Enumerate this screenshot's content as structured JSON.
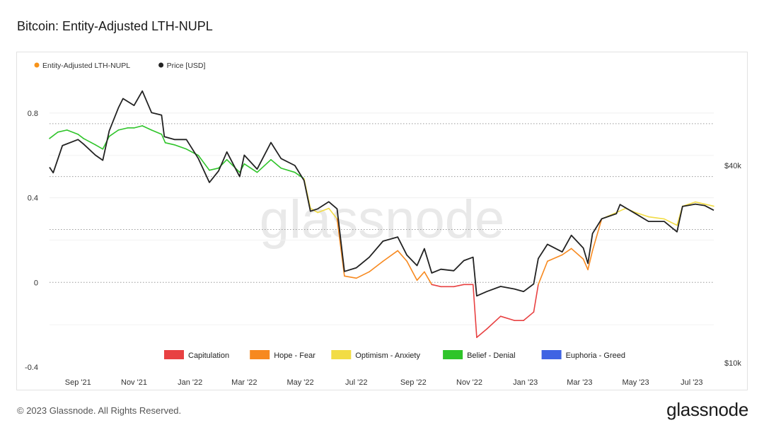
{
  "page": {
    "title": "Bitcoin: Entity-Adjusted LTH-NUPL",
    "copyright": "© 2023 Glassnode. All Rights Reserved.",
    "logo_text": "glassnode",
    "watermark": "glassnode"
  },
  "legend_top": [
    {
      "label": "Entity-Adjusted LTH-NUPL",
      "color": "#f7931a"
    },
    {
      "label": "Price [USD]",
      "color": "#222222"
    }
  ],
  "legend_bottom": [
    {
      "label": "Capitulation",
      "color": "#e84142"
    },
    {
      "label": "Hope - Fear",
      "color": "#f7891f"
    },
    {
      "label": "Optimism - Anxiety",
      "color": "#f2dc45"
    },
    {
      "label": "Belief - Denial",
      "color": "#2fc42a"
    },
    {
      "label": "Euphoria - Greed",
      "color": "#3f63e3"
    }
  ],
  "chart_data": {
    "type": "line",
    "title": "Bitcoin: Entity-Adjusted LTH-NUPL",
    "x_ticks": [
      "Sep '21",
      "Nov '21",
      "Jan '22",
      "Mar '22",
      "May '22",
      "Jul '22",
      "Sep '22",
      "Nov '22",
      "Jan '23",
      "Mar '23",
      "May '23",
      "Jul '23"
    ],
    "x_tick_dates": [
      "2021-09-01",
      "2021-11-01",
      "2022-01-01",
      "2022-03-01",
      "2022-05-01",
      "2022-07-01",
      "2022-09-01",
      "2022-11-01",
      "2023-01-01",
      "2023-03-01",
      "2023-05-01",
      "2023-07-01"
    ],
    "x_range": [
      "2021-08-01",
      "2023-07-25"
    ],
    "y_left": {
      "ticks": [
        "0.8",
        "0.4",
        "0",
        "-0.4"
      ],
      "tick_values": [
        0.8,
        0.4,
        0,
        -0.4
      ],
      "range": [
        -0.4,
        0.92
      ]
    },
    "y_right": {
      "ticks": [
        "$40k",
        "$10k"
      ],
      "tick_values": [
        40000,
        10000
      ],
      "scale": "log"
    },
    "dotted_reference_lines": [
      0.75,
      0.5,
      0.25,
      0
    ],
    "series": [
      {
        "name": "Entity-Adjusted LTH-NUPL",
        "axis": "left",
        "colored_by_zone": true,
        "points": [
          [
            "2021-08-01",
            0.68
          ],
          [
            "2021-08-10",
            0.71
          ],
          [
            "2021-08-20",
            0.72
          ],
          [
            "2021-09-01",
            0.7
          ],
          [
            "2021-09-07",
            0.68
          ],
          [
            "2021-09-20",
            0.65
          ],
          [
            "2021-09-28",
            0.63
          ],
          [
            "2021-10-05",
            0.69
          ],
          [
            "2021-10-15",
            0.72
          ],
          [
            "2021-10-25",
            0.73
          ],
          [
            "2021-11-01",
            0.73
          ],
          [
            "2021-11-10",
            0.74
          ],
          [
            "2021-11-20",
            0.72
          ],
          [
            "2021-12-01",
            0.7
          ],
          [
            "2021-12-05",
            0.66
          ],
          [
            "2021-12-15",
            0.65
          ],
          [
            "2021-12-28",
            0.63
          ],
          [
            "2022-01-10",
            0.6
          ],
          [
            "2022-01-22",
            0.53
          ],
          [
            "2022-02-01",
            0.54
          ],
          [
            "2022-02-10",
            0.58
          ],
          [
            "2022-02-24",
            0.52
          ],
          [
            "2022-03-01",
            0.56
          ],
          [
            "2022-03-15",
            0.52
          ],
          [
            "2022-03-30",
            0.58
          ],
          [
            "2022-04-10",
            0.54
          ],
          [
            "2022-04-25",
            0.52
          ],
          [
            "2022-05-05",
            0.49
          ],
          [
            "2022-05-12",
            0.35
          ],
          [
            "2022-05-20",
            0.33
          ],
          [
            "2022-06-01",
            0.35
          ],
          [
            "2022-06-10",
            0.3
          ],
          [
            "2022-06-18",
            0.03
          ],
          [
            "2022-07-01",
            0.02
          ],
          [
            "2022-07-15",
            0.05
          ],
          [
            "2022-07-30",
            0.1
          ],
          [
            "2022-08-15",
            0.15
          ],
          [
            "2022-08-25",
            0.1
          ],
          [
            "2022-09-05",
            0.01
          ],
          [
            "2022-09-13",
            0.05
          ],
          [
            "2022-09-21",
            -0.01
          ],
          [
            "2022-10-01",
            -0.02
          ],
          [
            "2022-10-15",
            -0.02
          ],
          [
            "2022-10-26",
            -0.01
          ],
          [
            "2022-11-05",
            -0.01
          ],
          [
            "2022-11-09",
            -0.26
          ],
          [
            "2022-11-20",
            -0.22
          ],
          [
            "2022-12-05",
            -0.16
          ],
          [
            "2022-12-20",
            -0.18
          ],
          [
            "2022-12-30",
            -0.18
          ],
          [
            "2023-01-10",
            -0.14
          ],
          [
            "2023-01-15",
            -0.01
          ],
          [
            "2023-01-25",
            0.1
          ],
          [
            "2023-02-10",
            0.13
          ],
          [
            "2023-02-20",
            0.16
          ],
          [
            "2023-03-05",
            0.11
          ],
          [
            "2023-03-10",
            0.06
          ],
          [
            "2023-03-15",
            0.15
          ],
          [
            "2023-03-25",
            0.3
          ],
          [
            "2023-04-10",
            0.33
          ],
          [
            "2023-04-20",
            0.35
          ],
          [
            "2023-05-01",
            0.33
          ],
          [
            "2023-05-15",
            0.31
          ],
          [
            "2023-06-01",
            0.3
          ],
          [
            "2023-06-15",
            0.27
          ],
          [
            "2023-06-21",
            0.36
          ],
          [
            "2023-07-05",
            0.38
          ],
          [
            "2023-07-15",
            0.37
          ],
          [
            "2023-07-25",
            0.36
          ]
        ]
      },
      {
        "name": "Price [USD]",
        "axis": "right",
        "color": "#222222",
        "points": [
          [
            "2021-08-01",
            39500
          ],
          [
            "2021-08-05",
            38000
          ],
          [
            "2021-08-15",
            46000
          ],
          [
            "2021-09-01",
            48000
          ],
          [
            "2021-09-07",
            46500
          ],
          [
            "2021-09-20",
            43000
          ],
          [
            "2021-09-28",
            41500
          ],
          [
            "2021-10-05",
            51000
          ],
          [
            "2021-10-15",
            60000
          ],
          [
            "2021-10-20",
            64000
          ],
          [
            "2021-11-01",
            61000
          ],
          [
            "2021-11-10",
            67500
          ],
          [
            "2021-11-20",
            58000
          ],
          [
            "2021-12-01",
            57000
          ],
          [
            "2021-12-04",
            49000
          ],
          [
            "2021-12-15",
            48000
          ],
          [
            "2021-12-28",
            48000
          ],
          [
            "2022-01-10",
            42000
          ],
          [
            "2022-01-22",
            35500
          ],
          [
            "2022-02-01",
            38500
          ],
          [
            "2022-02-10",
            44000
          ],
          [
            "2022-02-24",
            37000
          ],
          [
            "2022-03-01",
            43000
          ],
          [
            "2022-03-15",
            39000
          ],
          [
            "2022-03-30",
            47000
          ],
          [
            "2022-04-10",
            42000
          ],
          [
            "2022-04-25",
            40000
          ],
          [
            "2022-05-05",
            36000
          ],
          [
            "2022-05-12",
            29000
          ],
          [
            "2022-05-20",
            29500
          ],
          [
            "2022-06-01",
            31000
          ],
          [
            "2022-06-10",
            29500
          ],
          [
            "2022-06-18",
            19000
          ],
          [
            "2022-07-01",
            19500
          ],
          [
            "2022-07-15",
            21000
          ],
          [
            "2022-07-30",
            23500
          ],
          [
            "2022-08-15",
            24200
          ],
          [
            "2022-08-25",
            21300
          ],
          [
            "2022-09-05",
            19800
          ],
          [
            "2022-09-13",
            22300
          ],
          [
            "2022-09-21",
            18800
          ],
          [
            "2022-10-01",
            19300
          ],
          [
            "2022-10-15",
            19100
          ],
          [
            "2022-10-26",
            20500
          ],
          [
            "2022-11-05",
            21000
          ],
          [
            "2022-11-09",
            16000
          ],
          [
            "2022-11-20",
            16500
          ],
          [
            "2022-12-05",
            17100
          ],
          [
            "2022-12-20",
            16800
          ],
          [
            "2022-12-30",
            16500
          ],
          [
            "2023-01-10",
            17400
          ],
          [
            "2023-01-15",
            20800
          ],
          [
            "2023-01-25",
            23000
          ],
          [
            "2023-02-10",
            21800
          ],
          [
            "2023-02-20",
            24500
          ],
          [
            "2023-03-05",
            22400
          ],
          [
            "2023-03-10",
            20100
          ],
          [
            "2023-03-15",
            24800
          ],
          [
            "2023-03-25",
            27500
          ],
          [
            "2023-04-10",
            28500
          ],
          [
            "2023-04-14",
            30400
          ],
          [
            "2023-05-01",
            28500
          ],
          [
            "2023-05-15",
            27000
          ],
          [
            "2023-06-01",
            27000
          ],
          [
            "2023-06-15",
            25100
          ],
          [
            "2023-06-21",
            30000
          ],
          [
            "2023-07-05",
            30500
          ],
          [
            "2023-07-15",
            30200
          ],
          [
            "2023-07-25",
            29200
          ]
        ]
      }
    ],
    "zones": [
      {
        "name": "Capitulation",
        "range": [
          -1,
          0
        ],
        "color": "#e84142"
      },
      {
        "name": "Hope - Fear",
        "range": [
          0,
          0.25
        ],
        "color": "#f7891f"
      },
      {
        "name": "Optimism - Anxiety",
        "range": [
          0.25,
          0.5
        ],
        "color": "#f2dc45"
      },
      {
        "name": "Belief - Denial",
        "range": [
          0.5,
          0.75
        ],
        "color": "#2fc42a"
      },
      {
        "name": "Euphoria - Greed",
        "range": [
          0.75,
          1
        ],
        "color": "#3f63e3"
      }
    ],
    "legend_placement": "top-left and bottom-center"
  }
}
